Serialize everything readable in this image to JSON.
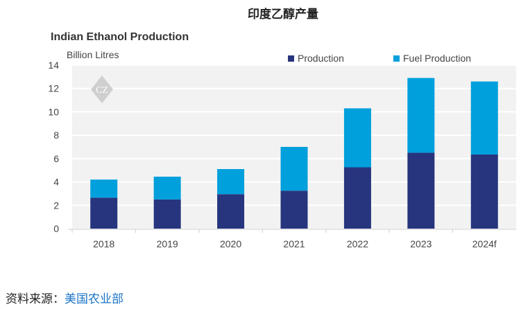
{
  "page_title": "印度乙醇产量",
  "source_label": "资料来源：",
  "source_link": "美国农业部",
  "chart_data": {
    "type": "bar",
    "stacked": true,
    "title": "Indian Ethanol Production",
    "ylabel": "Billion Litres",
    "xlabel": "",
    "ylim": [
      0,
      14
    ],
    "yticks": [
      0,
      2,
      4,
      6,
      8,
      10,
      12,
      14
    ],
    "grid": true,
    "legend_position": "top-right",
    "categories": [
      "2018",
      "2019",
      "2020",
      "2021",
      "2022",
      "2023",
      "2024f"
    ],
    "series": [
      {
        "name": "Production",
        "color": "#27357e",
        "values": [
          2.65,
          2.5,
          2.95,
          3.25,
          5.25,
          6.5,
          6.35
        ]
      },
      {
        "name": "Fuel Production",
        "color": "#00a0dc",
        "values": [
          1.55,
          1.95,
          2.15,
          3.75,
          5.05,
          6.4,
          6.25
        ]
      }
    ]
  }
}
